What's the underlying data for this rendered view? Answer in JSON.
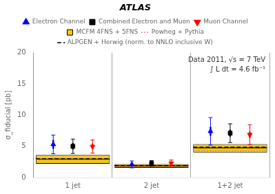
{
  "chart_data": {
    "type": "errorbar",
    "title": "ATLAS",
    "annotations": [
      "Data 2011, √s = 7 TeV",
      "∫ L dt = 4.6 fb⁻¹"
    ],
    "ylabel": "σ_fiducial [pb]",
    "categories": [
      "1 jet",
      "2 jet",
      "1+2 jet"
    ],
    "ylim": [
      0,
      20
    ],
    "yticks": [
      0,
      5,
      10,
      15,
      20
    ],
    "grid": false,
    "legend": "top",
    "series": [
      {
        "name": "Electron Channel",
        "type": "errorbar",
        "color": "blue",
        "marker": "triangle-up",
        "values": [
          5.3,
          2.1,
          7.4
        ],
        "stat_err": [
          0.7,
          0.25,
          0.7
        ],
        "syst_err": [
          1.5,
          0.55,
          2.2
        ]
      },
      {
        "name": "Combined Electron and Muon",
        "type": "errorbar",
        "color": "black",
        "marker": "square",
        "values": [
          5.0,
          2.25,
          7.1
        ],
        "stat_err": [
          0.5,
          0.2,
          0.55
        ],
        "syst_err": [
          1.15,
          0.45,
          1.5
        ]
      },
      {
        "name": "Muon Channel",
        "type": "errorbar",
        "color": "red",
        "marker": "triangle-down",
        "values": [
          4.95,
          2.3,
          6.85
        ],
        "stat_err": [
          0.45,
          0.2,
          0.5
        ],
        "syst_err": [
          1.05,
          0.5,
          1.6
        ]
      },
      {
        "name": "MCFM 4FNS + 5FNS",
        "type": "band",
        "color": "#f5c518",
        "low": [
          2.2,
          1.55,
          4.0
        ],
        "high": [
          3.6,
          2.15,
          5.35
        ],
        "values": [
          2.95,
          1.85,
          4.75
        ]
      },
      {
        "name": "Powheg + Pythia",
        "type": "step",
        "color": "#cc6666",
        "line_style": "dotted",
        "values": [
          2.85,
          1.75,
          4.25
        ]
      },
      {
        "name": "ALPGEN + Herwig (norm. to NNLO inclusive W)",
        "type": "step",
        "color": "black",
        "line_style": "dashed",
        "values": [
          3.0,
          1.9,
          4.85
        ]
      }
    ]
  }
}
